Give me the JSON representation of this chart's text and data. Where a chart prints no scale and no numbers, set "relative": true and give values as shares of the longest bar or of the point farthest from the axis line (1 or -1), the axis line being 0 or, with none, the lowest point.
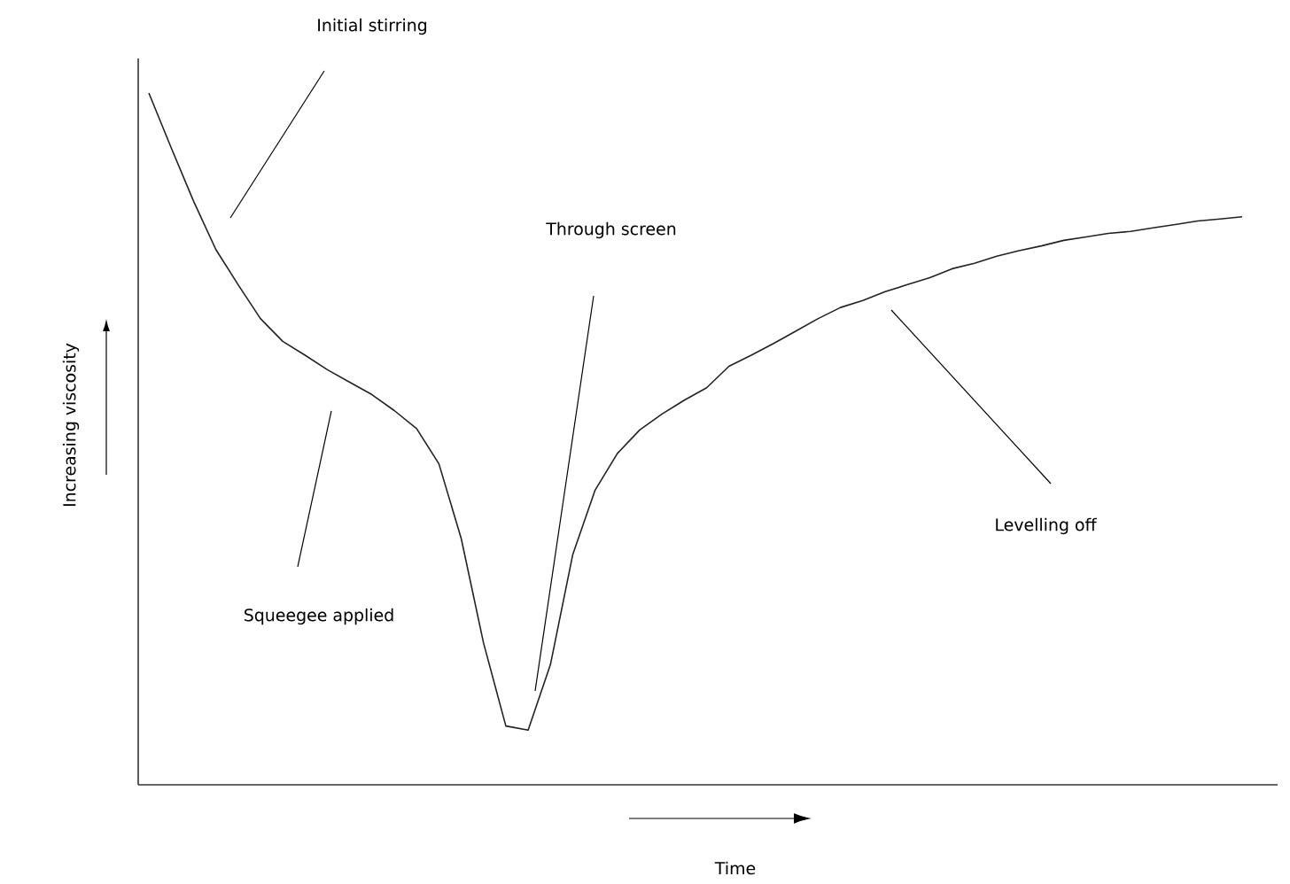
{
  "chart_data": {
    "type": "line",
    "relative": true,
    "color": "#222222",
    "xlabel": "Time",
    "ylabel": "Increasing viscosity",
    "annotations": [
      "Initial stirring",
      "Through screen",
      "Squeegee applied",
      "Levelling off"
    ],
    "categories": [
      null,
      null,
      null,
      null,
      null,
      null,
      null,
      null,
      null,
      null,
      null,
      null,
      null,
      null,
      null,
      null,
      null,
      null,
      null,
      null,
      null,
      null,
      null,
      null,
      null,
      null,
      null,
      null,
      null,
      null,
      null,
      null,
      null,
      null,
      null,
      null,
      null,
      null,
      null,
      null,
      null,
      null,
      null,
      null,
      null,
      null,
      null,
      null,
      null,
      null
    ],
    "values": [
      1.0,
      0.921,
      0.844,
      0.774,
      0.723,
      0.674,
      0.641,
      0.621,
      0.6,
      0.582,
      0.564,
      0.541,
      0.515,
      0.464,
      0.356,
      0.205,
      0.085,
      0.079,
      0.174,
      0.333,
      0.426,
      0.479,
      0.513,
      0.536,
      0.556,
      0.574,
      0.605,
      0.621,
      0.638,
      0.656,
      0.674,
      0.69,
      0.7,
      0.713,
      0.723,
      0.733,
      0.746,
      0.754,
      0.764,
      0.772,
      0.779,
      0.787,
      0.792,
      0.797,
      0.8,
      0.805,
      0.81,
      0.815,
      0.818,
      0.821
    ]
  }
}
